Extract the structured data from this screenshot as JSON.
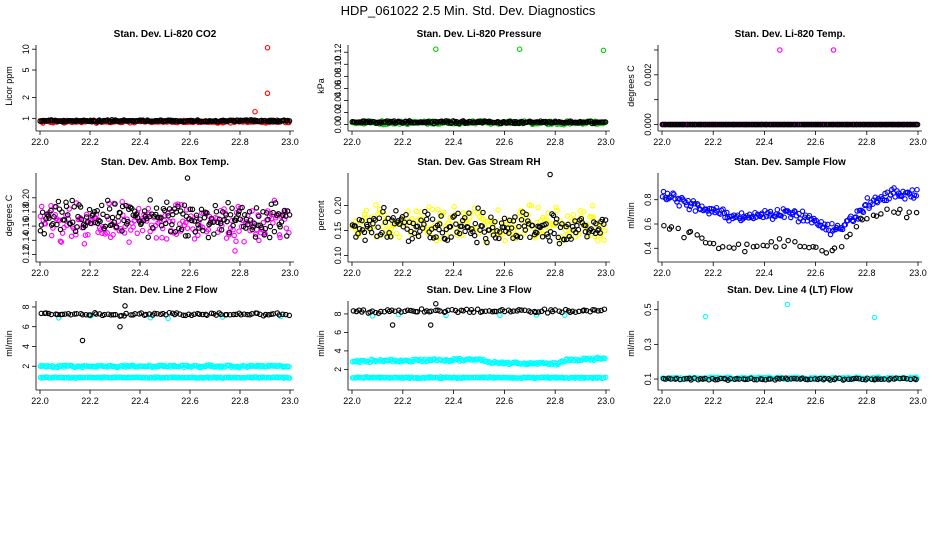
{
  "figure_title": "HDP_061022  2.5 Min. Std. Dev. Diagnostics",
  "colors": {
    "black": "#000000",
    "red": "#ff0000",
    "green": "#00cc00",
    "magenta": "#ff00ff",
    "yellow": "#ffff00",
    "blue": "#0000ff",
    "cyan": "#00ffff"
  },
  "chart_data": [
    {
      "type": "scatter",
      "title": "Stan. Dev. Li-820 CO2",
      "ylabel": "Licor ppm",
      "xlabel": "",
      "y_scale": "log",
      "xlim": [
        22.0,
        23.0
      ],
      "ylim": [
        0.75,
        11.5
      ],
      "x_ticks": [
        "22.0",
        "22.2",
        "22.4",
        "22.6",
        "22.8",
        "23.0"
      ],
      "y_ticks": [
        {
          "v": 1,
          "label": "1"
        },
        {
          "v": 2,
          "label": "2"
        },
        {
          "v": 5,
          "label": "5"
        },
        {
          "v": 10,
          "label": "10"
        }
      ],
      "series": [
        {
          "name": "primary",
          "color": "red",
          "baseline": 0.9,
          "spread": 0.04,
          "outliers": [
            {
              "x": 22.91,
              "y": 10.5
            },
            {
              "x": 22.91,
              "y": 2.3
            },
            {
              "x": 22.86,
              "y": 1.25
            }
          ]
        },
        {
          "name": "secondary",
          "color": "black",
          "baseline": 0.92,
          "spread": 0.03
        }
      ]
    },
    {
      "type": "scatter",
      "title": "Stan. Dev. Li-820 Pressure",
      "ylabel": "kPa",
      "xlabel": "",
      "xlim": [
        22.0,
        23.0
      ],
      "ylim": [
        -0.004,
        0.132
      ],
      "x_ticks": [
        "22.0",
        "22.2",
        "22.4",
        "22.6",
        "22.8",
        "23.0"
      ],
      "y_ticks": [
        {
          "v": 0.0,
          "label": "0.00"
        },
        {
          "v": 0.02,
          "label": "0.02"
        },
        {
          "v": 0.04,
          "label": "0.04"
        },
        {
          "v": 0.06,
          "label": "0.06"
        },
        {
          "v": 0.08,
          "label": "0.08"
        },
        {
          "v": 0.1,
          "label": "0.10"
        },
        {
          "v": 0.12,
          "label": "0.12"
        }
      ],
      "series": [
        {
          "name": "primary",
          "color": "green",
          "baseline": 0.003,
          "spread": 0.003,
          "outliers": [
            {
              "x": 22.33,
              "y": 0.125
            },
            {
              "x": 22.66,
              "y": 0.125
            },
            {
              "x": 22.99,
              "y": 0.123
            }
          ]
        },
        {
          "name": "secondary",
          "color": "black",
          "baseline": 0.004,
          "spread": 0.002
        }
      ]
    },
    {
      "type": "scatter",
      "title": "Stan. Dev. Li-820 Temp.",
      "ylabel": "degrees C",
      "xlabel": "",
      "xlim": [
        22.0,
        23.0
      ],
      "ylim": [
        -0.0001,
        0.0032
      ],
      "x_ticks": [
        "22.0",
        "22.2",
        "22.4",
        "22.6",
        "22.8",
        "23.0"
      ],
      "y_ticks": [
        {
          "v": 0.0,
          "label": "0.000"
        },
        {
          "v": 0.001,
          "label": ""
        },
        {
          "v": 0.002,
          "label": "0.002"
        },
        {
          "v": 0.003,
          "label": ""
        }
      ],
      "series": [
        {
          "name": "primary",
          "color": "magenta",
          "baseline": 0.0,
          "spread": 0.0,
          "outliers": [
            {
              "x": 22.46,
              "y": 0.003
            },
            {
              "x": 22.67,
              "y": 0.003
            }
          ]
        },
        {
          "name": "secondary",
          "color": "black",
          "baseline": 0.0,
          "spread": 0.0
        }
      ]
    },
    {
      "type": "scatter",
      "title": "Stan. Dev. Amb. Box Temp.",
      "ylabel": "degrees C",
      "xlabel": "",
      "xlim": [
        22.0,
        23.0
      ],
      "ylim": [
        0.115,
        0.235
      ],
      "x_ticks": [
        "22.0",
        "22.2",
        "22.4",
        "22.6",
        "22.8",
        "23.0"
      ],
      "y_ticks": [
        {
          "v": 0.12,
          "label": "0.12"
        },
        {
          "v": 0.14,
          "label": "0.14"
        },
        {
          "v": 0.16,
          "label": "0.16"
        },
        {
          "v": 0.18,
          "label": "0.18"
        },
        {
          "v": 0.2,
          "label": "0.20"
        }
      ],
      "series": [
        {
          "name": "primary",
          "color": "magenta",
          "baseline": 0.165,
          "spread": 0.028,
          "outliers": [
            {
              "x": 22.78,
              "y": 0.125
            }
          ]
        },
        {
          "name": "secondary",
          "color": "black",
          "baseline": 0.17,
          "spread": 0.025,
          "outliers": [
            {
              "x": 22.59,
              "y": 0.228
            }
          ]
        }
      ]
    },
    {
      "type": "scatter",
      "title": "Stan. Dev. Gas Stream RH",
      "ylabel": "percent",
      "xlabel": "",
      "xlim": [
        22.0,
        23.0
      ],
      "ylim": [
        0.095,
        0.265
      ],
      "x_ticks": [
        "22.0",
        "22.2",
        "22.4",
        "22.6",
        "22.8",
        "23.0"
      ],
      "y_ticks": [
        {
          "v": 0.1,
          "label": "0.10"
        },
        {
          "v": 0.15,
          "label": "0.15"
        },
        {
          "v": 0.2,
          "label": "0.20"
        }
      ],
      "series": [
        {
          "name": "primary",
          "color": "yellow",
          "baseline": 0.165,
          "spread": 0.035
        },
        {
          "name": "secondary",
          "color": "black",
          "baseline": 0.16,
          "spread": 0.035,
          "outliers": [
            {
              "x": 22.78,
              "y": 0.262
            }
          ]
        }
      ]
    },
    {
      "type": "scatter",
      "title": "Stan. Dev. Sample Flow",
      "ylabel": "ml/min",
      "xlabel": "",
      "xlim": [
        22.0,
        23.0
      ],
      "ylim": [
        0.32,
        1.02
      ],
      "x_ticks": [
        "22.0",
        "22.2",
        "22.4",
        "22.6",
        "22.8",
        "23.0"
      ],
      "y_ticks": [
        {
          "v": 0.4,
          "label": "0.4"
        },
        {
          "v": 0.6,
          "label": "0.6"
        },
        {
          "v": 0.8,
          "label": "0.8"
        }
      ],
      "series": [
        {
          "name": "primary",
          "color": "blue",
          "profile": [
            [
              22.0,
              0.86
            ],
            [
              22.05,
              0.82
            ],
            [
              22.1,
              0.76
            ],
            [
              22.2,
              0.7
            ],
            [
              22.3,
              0.66
            ],
            [
              22.4,
              0.68
            ],
            [
              22.5,
              0.7
            ],
            [
              22.6,
              0.63
            ],
            [
              22.65,
              0.56
            ],
            [
              22.7,
              0.58
            ],
            [
              22.75,
              0.65
            ],
            [
              22.8,
              0.76
            ],
            [
              22.9,
              0.85
            ],
            [
              23.0,
              0.84
            ]
          ],
          "spread": 0.05
        },
        {
          "name": "secondary",
          "color": "black",
          "profile": [
            [
              22.0,
              0.56
            ],
            [
              22.1,
              0.52
            ],
            [
              22.2,
              0.44
            ],
            [
              22.3,
              0.4
            ],
            [
              22.4,
              0.42
            ],
            [
              22.5,
              0.45
            ],
            [
              22.6,
              0.4
            ],
            [
              22.65,
              0.38
            ],
            [
              22.7,
              0.42
            ],
            [
              22.75,
              0.55
            ],
            [
              22.8,
              0.66
            ],
            [
              22.9,
              0.72
            ],
            [
              23.0,
              0.66
            ]
          ],
          "spread": 0.04,
          "n": 55
        }
      ]
    },
    {
      "type": "scatter",
      "title": "Stan. Dev. Line 2 Flow",
      "ylabel": "ml/min",
      "xlabel": "",
      "xlim": [
        22.0,
        23.0
      ],
      "ylim": [
        0.0,
        8.6
      ],
      "x_ticks": [
        "22.0",
        "22.2",
        "22.4",
        "22.6",
        "22.8",
        "23.0"
      ],
      "y_ticks": [
        {
          "v": 2,
          "label": "2"
        },
        {
          "v": 4,
          "label": "4"
        },
        {
          "v": 6,
          "label": "6"
        },
        {
          "v": 8,
          "label": "8"
        }
      ],
      "series": [
        {
          "name": "band-upper",
          "color": "cyan",
          "baseline": 2.0,
          "spread": 0.12
        },
        {
          "name": "band-lower",
          "color": "cyan",
          "baseline": 0.85,
          "spread": 0.06
        },
        {
          "name": "cyan-points",
          "color": "cyan",
          "baseline": 7.0,
          "spread": 0.15,
          "n": 6
        },
        {
          "name": "secondary",
          "color": "black",
          "baseline": 7.25,
          "spread": 0.15,
          "n": 90,
          "outliers": [
            {
              "x": 22.17,
              "y": 4.6
            },
            {
              "x": 22.32,
              "y": 6.0
            },
            {
              "x": 22.34,
              "y": 8.1
            }
          ]
        }
      ]
    },
    {
      "type": "scatter",
      "title": "Stan. Dev. Line 3 Flow",
      "ylabel": "ml/min",
      "xlabel": "",
      "xlim": [
        22.0,
        23.0
      ],
      "ylim": [
        0.2,
        9.4
      ],
      "x_ticks": [
        "22.0",
        "22.2",
        "22.4",
        "22.6",
        "22.8",
        "23.0"
      ],
      "y_ticks": [
        {
          "v": 2,
          "label": "2"
        },
        {
          "v": 4,
          "label": "4"
        },
        {
          "v": 6,
          "label": "6"
        },
        {
          "v": 8,
          "label": "8"
        }
      ],
      "series": [
        {
          "name": "band-upper",
          "color": "cyan",
          "profile": [
            [
              22.0,
              2.9
            ],
            [
              22.4,
              3.0
            ],
            [
              22.5,
              3.1
            ],
            [
              22.55,
              2.7
            ],
            [
              22.8,
              2.6
            ],
            [
              22.85,
              3.0
            ],
            [
              23.0,
              3.2
            ]
          ],
          "spread": 0.15
        },
        {
          "name": "band-lower",
          "color": "cyan",
          "baseline": 1.1,
          "spread": 0.08
        },
        {
          "name": "cyan-points",
          "color": "cyan",
          "baseline": 7.8,
          "spread": 0.15,
          "n": 6
        },
        {
          "name": "secondary",
          "color": "black",
          "baseline": 8.3,
          "spread": 0.2,
          "n": 90,
          "outliers": [
            {
              "x": 22.16,
              "y": 6.8
            },
            {
              "x": 22.31,
              "y": 6.8
            },
            {
              "x": 22.33,
              "y": 9.1
            }
          ]
        }
      ]
    },
    {
      "type": "scatter",
      "title": "Stan. Dev. Line 4 (LT) Flow",
      "ylabel": "ml/min",
      "xlabel": "",
      "xlim": [
        22.0,
        23.0
      ],
      "ylim": [
        0.06,
        0.55
      ],
      "x_ticks": [
        "22.0",
        "22.2",
        "22.4",
        "22.6",
        "22.8",
        "23.0"
      ],
      "y_ticks": [
        {
          "v": 0.1,
          "label": "0.1"
        },
        {
          "v": 0.3,
          "label": "0.3"
        },
        {
          "v": 0.5,
          "label": "0.5"
        }
      ],
      "series": [
        {
          "name": "primary",
          "color": "cyan",
          "baseline": 0.105,
          "spread": 0.006,
          "outliers": [
            {
              "x": 22.17,
              "y": 0.46
            },
            {
              "x": 22.49,
              "y": 0.53
            },
            {
              "x": 22.83,
              "y": 0.455
            }
          ]
        },
        {
          "name": "secondary",
          "color": "black",
          "baseline": 0.1,
          "spread": 0.006,
          "n": 90
        }
      ]
    }
  ]
}
